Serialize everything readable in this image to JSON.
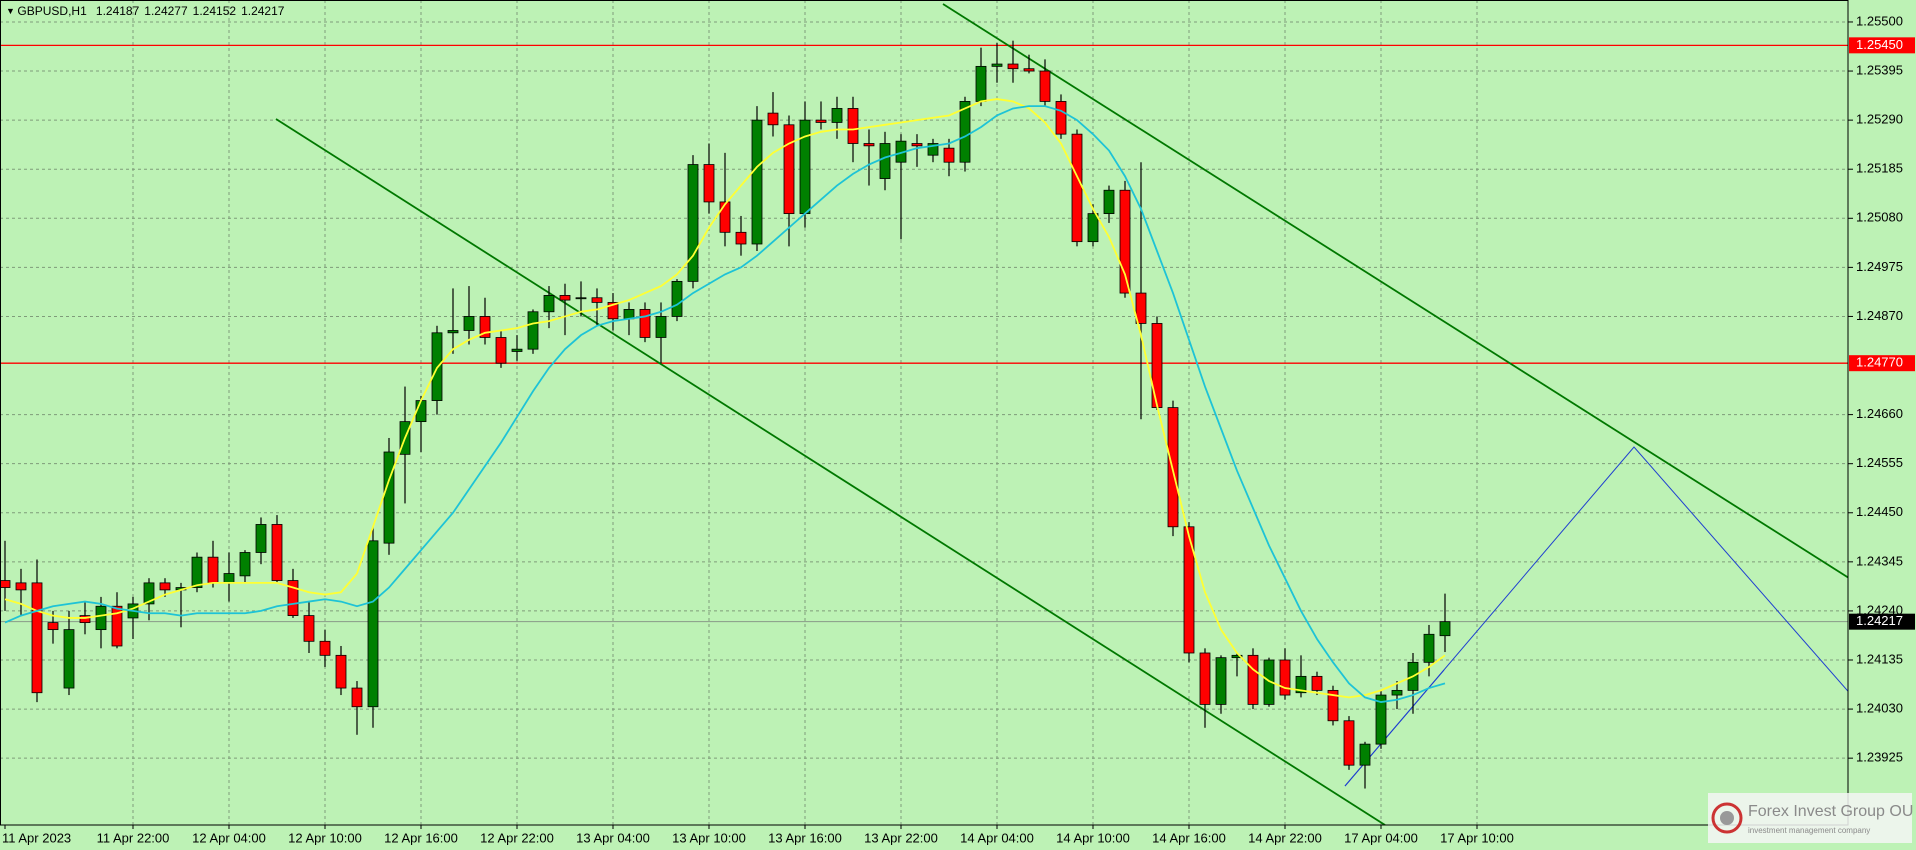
{
  "chart_data": {
    "type": "candlestick",
    "title": "GBPUSD,H1",
    "header_values": [
      "1.24187",
      "1.24277",
      "1.24152",
      "1.24217"
    ],
    "categories": [
      "11 Apr 2023",
      null,
      null,
      null,
      null,
      null,
      null,
      null,
      "11 Apr 22:00",
      null,
      null,
      null,
      null,
      null,
      "12 Apr 04:00",
      null,
      null,
      null,
      null,
      null,
      "12 Apr 10:00",
      null,
      null,
      null,
      null,
      null,
      "12 Apr 16:00",
      null,
      null,
      null,
      null,
      null,
      "12 Apr 22:00",
      null,
      null,
      null,
      null,
      null,
      "13 Apr 04:00",
      null,
      null,
      null,
      null,
      null,
      "13 Apr 10:00",
      null,
      null,
      null,
      null,
      null,
      "13 Apr 16:00",
      null,
      null,
      null,
      null,
      null,
      "13 Apr 22:00",
      null,
      null,
      null,
      null,
      null,
      "14 Apr 04:00",
      null,
      null,
      null,
      null,
      null,
      "14 Apr 10:00",
      null,
      null,
      null,
      null,
      null,
      "14 Apr 16:00",
      null,
      null,
      null,
      null,
      null,
      "14 Apr 22:00",
      null,
      null,
      null,
      null,
      null,
      "17 Apr 04:00",
      null,
      null,
      null,
      null,
      null,
      "17 Apr 10:00"
    ],
    "open": [
      1.24305,
      1.243,
      1.243,
      1.24215,
      1.24075,
      1.2423,
      1.242,
      1.2425,
      1.24225,
      1.24255,
      1.243,
      1.24285,
      1.2429,
      1.24355,
      1.243,
      1.24315,
      1.24365,
      1.24425,
      1.24305,
      1.2423,
      1.24175,
      1.24145,
      1.24075,
      1.24035,
      1.24385,
      1.24575,
      1.24645,
      1.2469,
      1.24835,
      1.2484,
      1.2487,
      1.24825,
      1.24795,
      1.248,
      1.2488,
      1.24915,
      1.2491,
      1.2491,
      1.249,
      1.24865,
      1.24885,
      1.24825,
      1.2487,
      1.24945,
      1.25195,
      1.25115,
      1.2505,
      1.25025,
      1.25305,
      1.2528,
      1.2509,
      1.2529,
      1.25285,
      1.25315,
      1.2524,
      1.25165,
      1.252,
      1.2524,
      1.25215,
      1.2523,
      1.252,
      1.2533,
      1.25405,
      1.2541,
      1.254,
      1.25395,
      1.2533,
      1.2526,
      1.2503,
      1.2509,
      1.2514,
      1.2492,
      1.24855,
      1.24675,
      1.2442,
      1.2415,
      1.2404,
      1.2414,
      1.24145,
      1.2404,
      1.24135,
      1.24065,
      1.241,
      1.2407,
      1.24005,
      1.2391,
      1.23955,
      1.2406,
      1.2407,
      1.2413,
      1.24187,
      null,
      null
    ],
    "high": [
      1.2439,
      1.2433,
      1.2435,
      1.2424,
      1.2424,
      1.2426,
      1.2427,
      1.2428,
      1.2427,
      1.2431,
      1.2431,
      1.243,
      1.24365,
      1.2439,
      1.24365,
      1.2437,
      1.2444,
      1.24445,
      1.2433,
      1.2426,
      1.242,
      1.24165,
      1.2409,
      1.2442,
      1.2461,
      1.2472,
      1.247,
      1.2485,
      1.2493,
      1.24935,
      1.2491,
      1.2484,
      1.2483,
      1.24885,
      1.24935,
      1.2494,
      1.24945,
      1.2493,
      1.2492,
      1.249,
      1.249,
      1.249,
      1.2495,
      1.25215,
      1.2524,
      1.2522,
      1.25085,
      1.2532,
      1.2535,
      1.253,
      1.2533,
      1.2533,
      1.2534,
      1.2534,
      1.2527,
      1.25265,
      1.2526,
      1.2526,
      1.2525,
      1.2525,
      1.2534,
      1.25445,
      1.25455,
      1.2546,
      1.2543,
      1.2542,
      1.25345,
      1.2527,
      1.2511,
      1.2515,
      1.2516,
      1.252,
      1.2487,
      1.2469,
      1.2443,
      1.2416,
      1.24145,
      1.2415,
      1.2416,
      1.2414,
      1.2416,
      1.24145,
      1.2411,
      1.2408,
      1.24015,
      1.2396,
      1.2407,
      1.2409,
      1.2415,
      1.2421,
      1.24277,
      null,
      null
    ],
    "low": [
      1.2424,
      1.2423,
      1.24045,
      1.2417,
      1.2406,
      1.2419,
      1.2416,
      1.2416,
      1.2418,
      1.2422,
      1.2427,
      1.24205,
      1.2428,
      1.2429,
      1.2426,
      1.243,
      1.2434,
      1.243,
      1.24225,
      1.2415,
      1.2412,
      1.2406,
      1.23975,
      1.2399,
      1.2436,
      1.2447,
      1.2458,
      1.2466,
      1.2479,
      1.2481,
      1.2481,
      1.2476,
      1.24775,
      1.2479,
      1.24845,
      1.2483,
      1.2487,
      1.2485,
      1.2484,
      1.2483,
      1.24815,
      1.2477,
      1.2486,
      1.2493,
      1.2509,
      1.2502,
      1.25,
      1.2501,
      1.25255,
      1.2502,
      1.2506,
      1.2527,
      1.2525,
      1.252,
      1.2515,
      1.2514,
      1.25035,
      1.2519,
      1.252,
      1.2517,
      1.2518,
      1.2532,
      1.2537,
      1.2537,
      1.2539,
      1.2532,
      1.2525,
      1.2502,
      1.2502,
      1.2507,
      1.2491,
      1.2465,
      1.2467,
      1.244,
      1.2413,
      1.2399,
      1.2402,
      1.241,
      1.2403,
      1.24035,
      1.2405,
      1.24055,
      1.2406,
      1.23995,
      1.239,
      1.2386,
      1.23945,
      1.2403,
      1.2402,
      1.241,
      1.24152,
      null,
      null
    ],
    "close": [
      1.2429,
      1.24285,
      1.24065,
      1.242,
      1.242,
      1.24215,
      1.2425,
      1.24165,
      1.24255,
      1.243,
      1.24285,
      1.2429,
      1.24355,
      1.243,
      1.2432,
      1.24365,
      1.24425,
      1.24305,
      1.2423,
      1.24175,
      1.24145,
      1.24075,
      1.24035,
      1.2439,
      1.2458,
      1.24645,
      1.2469,
      1.24835,
      1.2484,
      1.2487,
      1.24825,
      1.2477,
      1.248,
      1.2488,
      1.24915,
      1.24905,
      1.2491,
      1.249,
      1.24865,
      1.24885,
      1.24825,
      1.2487,
      1.24945,
      1.25195,
      1.25115,
      1.2505,
      1.25025,
      1.2529,
      1.2528,
      1.2509,
      1.2529,
      1.25285,
      1.25315,
      1.2524,
      1.25235,
      1.2524,
      1.25245,
      1.25235,
      1.2524,
      1.252,
      1.2533,
      1.25405,
      1.2541,
      1.254,
      1.25395,
      1.2533,
      1.2526,
      1.2503,
      1.2509,
      1.2514,
      1.2492,
      1.24855,
      1.24675,
      1.2442,
      1.2415,
      1.2404,
      1.2414,
      1.24145,
      1.2404,
      1.24135,
      1.2406,
      1.241,
      1.2407,
      1.24005,
      1.2391,
      1.23955,
      1.2406,
      1.2407,
      1.2413,
      1.2419,
      1.24217,
      null,
      null
    ],
    "up_color": "#008000",
    "down_color": "#ff0000",
    "series": [
      {
        "color": "#ffff33",
        "values": [
          1.24265,
          1.24255,
          1.2424,
          1.2423,
          1.24225,
          1.24225,
          1.2423,
          1.24235,
          1.24245,
          1.2426,
          1.24275,
          1.24285,
          1.24295,
          1.243,
          1.243,
          1.243,
          1.243,
          1.243,
          1.2429,
          1.2428,
          1.24275,
          1.2428,
          1.2432,
          1.2442,
          1.2452,
          1.2461,
          1.2469,
          1.2476,
          1.248,
          1.2482,
          1.24835,
          1.2484,
          1.24845,
          1.24855,
          1.2486,
          1.2487,
          1.2488,
          1.24885,
          1.24895,
          1.24905,
          1.2492,
          1.24935,
          1.2496,
          1.25,
          1.2506,
          1.2511,
          1.2515,
          1.2519,
          1.2522,
          1.2524,
          1.25255,
          1.25265,
          1.2527,
          1.2527,
          1.25275,
          1.2528,
          1.25285,
          1.2529,
          1.25295,
          1.253,
          1.25315,
          1.2533,
          1.25335,
          1.2533,
          1.25315,
          1.25285,
          1.2524,
          1.2517,
          1.251,
          1.2504,
          1.2496,
          1.2483,
          1.2468,
          1.2454,
          1.244,
          1.2428,
          1.242,
          1.2415,
          1.24115,
          1.2409,
          1.24075,
          1.2407,
          1.24065,
          1.2406,
          1.24055,
          1.2406,
          1.2407,
          1.24085,
          1.241,
          1.2412,
          1.24145,
          null,
          null
        ]
      },
      {
        "color": "#1ec3d6",
        "values": [
          1.24215,
          1.2423,
          1.2424,
          1.2425,
          1.24255,
          1.2426,
          1.24255,
          1.24245,
          1.2424,
          1.24235,
          1.24235,
          1.2423,
          1.24235,
          1.24235,
          1.24235,
          1.24235,
          1.2424,
          1.2425,
          1.24255,
          1.2426,
          1.24265,
          1.2426,
          1.2425,
          1.2426,
          1.2429,
          1.2433,
          1.2437,
          1.2441,
          1.2445,
          1.245,
          1.2455,
          1.246,
          1.24655,
          1.2471,
          1.2476,
          1.248,
          1.2483,
          1.2485,
          1.2486,
          1.24865,
          1.2487,
          1.2488,
          1.24895,
          1.2492,
          1.2494,
          1.2496,
          1.24975,
          1.25,
          1.2503,
          1.2506,
          1.2509,
          1.2512,
          1.2515,
          1.25175,
          1.25195,
          1.2521,
          1.2522,
          1.2523,
          1.25235,
          1.2524,
          1.25255,
          1.25275,
          1.253,
          1.25315,
          1.2532,
          1.2532,
          1.2531,
          1.2529,
          1.2526,
          1.25225,
          1.2517,
          1.251,
          1.2501,
          1.2492,
          1.2482,
          1.2472,
          1.2463,
          1.2454,
          1.2446,
          1.2438,
          1.2431,
          1.2424,
          1.2418,
          1.2413,
          1.24085,
          1.24055,
          1.24045,
          1.2405,
          1.2406,
          1.24075,
          1.24085,
          null,
          null
        ]
      }
    ],
    "ylim": [
      1.23782,
      1.25547
    ],
    "yticks": [
      {
        "value": 1.255,
        "label": "1.25500"
      },
      1.25395,
      {
        "value": 1.2529,
        "label": "1.25290"
      },
      1.25185,
      {
        "value": 1.2508,
        "label": "1.25080"
      },
      1.24975,
      {
        "value": 1.2487,
        "label": "1.24870"
      },
      {
        "value": 1.2466,
        "label": "1.24660"
      },
      1.24555,
      {
        "value": 1.2445,
        "label": "1.24450"
      },
      1.24345,
      {
        "value": 1.2424,
        "label": "1.24240"
      },
      1.24135,
      {
        "value": 1.2403,
        "label": "1.24030"
      },
      1.23925
    ],
    "grid": true,
    "levels": [
      {
        "value": 1.2545,
        "label": "1.25450"
      },
      {
        "value": 1.2477,
        "label": "1.24770"
      }
    ],
    "level_color": "#ff0000",
    "last_price": {
      "value": 1.24217,
      "label": "1.24217"
    },
    "watermark": {
      "title": "Forex Invest Group OU",
      "subtitle": "investment management company"
    }
  }
}
